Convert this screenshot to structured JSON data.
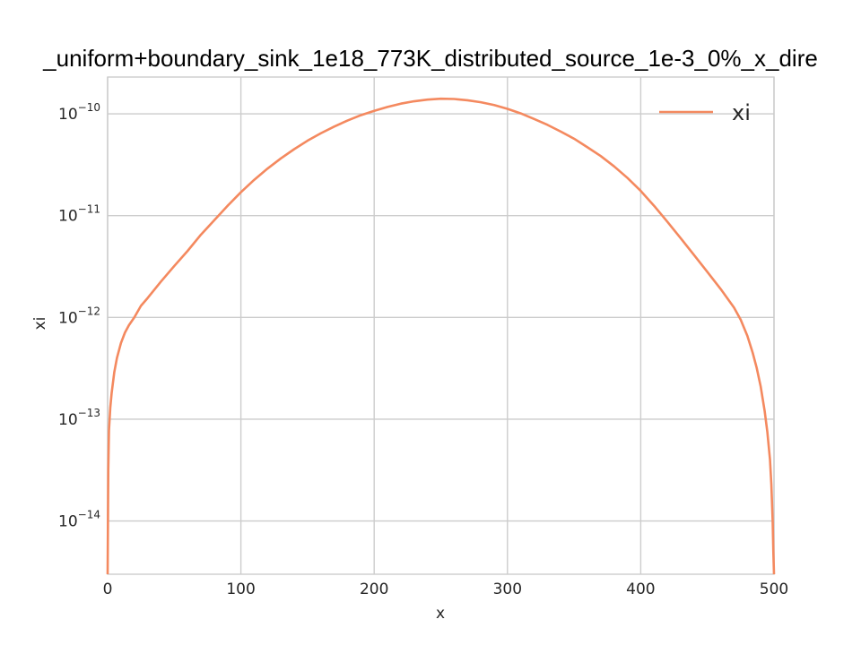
{
  "chart_data": {
    "type": "line",
    "title": "_uniform+boundary_sink_1e18_773K_distributed_source_1e-3_0%_x_dire",
    "xlabel": "x",
    "ylabel": "xi",
    "yscale": "log",
    "xlim": [
      0,
      500
    ],
    "ylim": [
      3e-15,
      2.3e-10
    ],
    "grid": true,
    "legend_placement": "top-right",
    "x_ticks": [
      {
        "value": 0,
        "label": "0"
      },
      {
        "value": 100,
        "label": "100"
      },
      {
        "value": 200,
        "label": "200"
      },
      {
        "value": 300,
        "label": "300"
      },
      {
        "value": 400,
        "label": "400"
      },
      {
        "value": 500,
        "label": "500"
      }
    ],
    "y_ticks": [
      {
        "value": 1e-14,
        "base": "10",
        "exp": "−14"
      },
      {
        "value": 1e-13,
        "base": "10",
        "exp": "−13"
      },
      {
        "value": 1e-12,
        "base": "10",
        "exp": "−12"
      },
      {
        "value": 1e-11,
        "base": "10",
        "exp": "−11"
      },
      {
        "value": 1e-10,
        "base": "10",
        "exp": "−10"
      }
    ],
    "series": [
      {
        "name": "xi",
        "color": "#f4895f",
        "x": [
          0,
          0.5,
          1,
          2,
          3,
          5,
          7,
          10,
          13,
          16,
          20,
          25,
          30,
          40,
          50,
          60,
          70,
          80,
          90,
          100,
          110,
          120,
          130,
          140,
          150,
          160,
          170,
          180,
          190,
          200,
          210,
          220,
          230,
          240,
          250,
          260,
          270,
          280,
          290,
          300,
          310,
          320,
          330,
          340,
          350,
          360,
          370,
          380,
          390,
          400,
          410,
          420,
          430,
          440,
          450,
          460,
          470,
          475,
          480,
          484,
          487,
          490,
          493,
          495,
          497,
          498,
          499,
          499.5,
          500
        ],
        "y": [
          3e-15,
          3.2e-14,
          7.7e-14,
          1.3e-13,
          1.8e-13,
          2.9e-13,
          4e-13,
          5.6e-13,
          7.1e-13,
          8.4e-13,
          1e-12,
          1.3e-12,
          1.55e-12,
          2.25e-12,
          3.2e-12,
          4.5e-12,
          6.5e-12,
          9e-12,
          1.25e-11,
          1.7e-11,
          2.25e-11,
          2.9e-11,
          3.65e-11,
          4.5e-11,
          5.45e-11,
          6.45e-11,
          7.5e-11,
          8.6e-11,
          9.7e-11,
          1.07e-10,
          1.17e-10,
          1.26e-10,
          1.33e-10,
          1.38e-10,
          1.41e-10,
          1.4e-10,
          1.36e-10,
          1.3e-10,
          1.22e-10,
          1.12e-10,
          1.01e-10,
          8.9e-11,
          7.8e-11,
          6.7e-11,
          5.7e-11,
          4.7e-11,
          3.85e-11,
          3.05e-11,
          2.35e-11,
          1.75e-11,
          1.25e-11,
          8.7e-12,
          6e-12,
          4.1e-12,
          2.8e-12,
          1.9e-12,
          1.25e-12,
          9.5e-13,
          6.6e-13,
          4.5e-13,
          3.2e-13,
          2.1e-13,
          1.2e-13,
          7.5e-14,
          4e-14,
          2.3e-14,
          1e-14,
          5e-15,
          3e-15
        ]
      }
    ]
  }
}
